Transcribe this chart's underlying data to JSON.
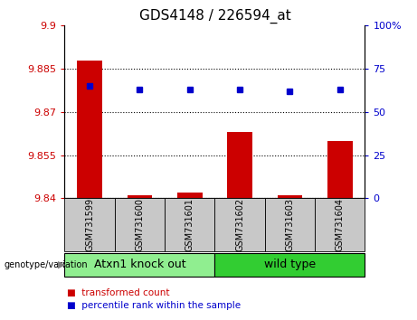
{
  "title": "GDS4148 / 226594_at",
  "samples": [
    "GSM731599",
    "GSM731600",
    "GSM731601",
    "GSM731602",
    "GSM731603",
    "GSM731604"
  ],
  "transformed_counts": [
    9.888,
    9.841,
    9.842,
    9.863,
    9.841,
    9.86
  ],
  "percentile_ranks": [
    65,
    63,
    63,
    63,
    62,
    63
  ],
  "ylim_left": [
    9.84,
    9.9
  ],
  "ylim_right": [
    0,
    100
  ],
  "yticks_left": [
    9.84,
    9.855,
    9.87,
    9.885,
    9.9
  ],
  "yticks_right": [
    0,
    25,
    50,
    75,
    100
  ],
  "ytick_labels_left": [
    "9.84",
    "9.855",
    "9.87",
    "9.885",
    "9.9"
  ],
  "ytick_labels_right": [
    "0",
    "25",
    "50",
    "75",
    "100%"
  ],
  "groups": [
    {
      "label": "Atxn1 knock out",
      "indices": [
        0,
        1,
        2
      ],
      "color": "#90EE90"
    },
    {
      "label": "wild type",
      "indices": [
        3,
        4,
        5
      ],
      "color": "#32CD32"
    }
  ],
  "bar_color": "#CC0000",
  "dot_color": "#0000CC",
  "base_value": 9.84,
  "bg_color": "#FFFFFF",
  "plot_bg_color": "#FFFFFF",
  "left_tick_color": "#CC0000",
  "right_tick_color": "#0000CC",
  "legend_items": [
    {
      "label": "transformed count",
      "color": "#CC0000"
    },
    {
      "label": "percentile rank within the sample",
      "color": "#0000CC"
    }
  ],
  "genotype_label": "genotype/variation",
  "sample_box_color": "#C8C8C8",
  "title_fontsize": 11,
  "tick_fontsize": 8,
  "sample_fontsize": 7,
  "group_fontsize": 9,
  "legend_fontsize": 7.5
}
